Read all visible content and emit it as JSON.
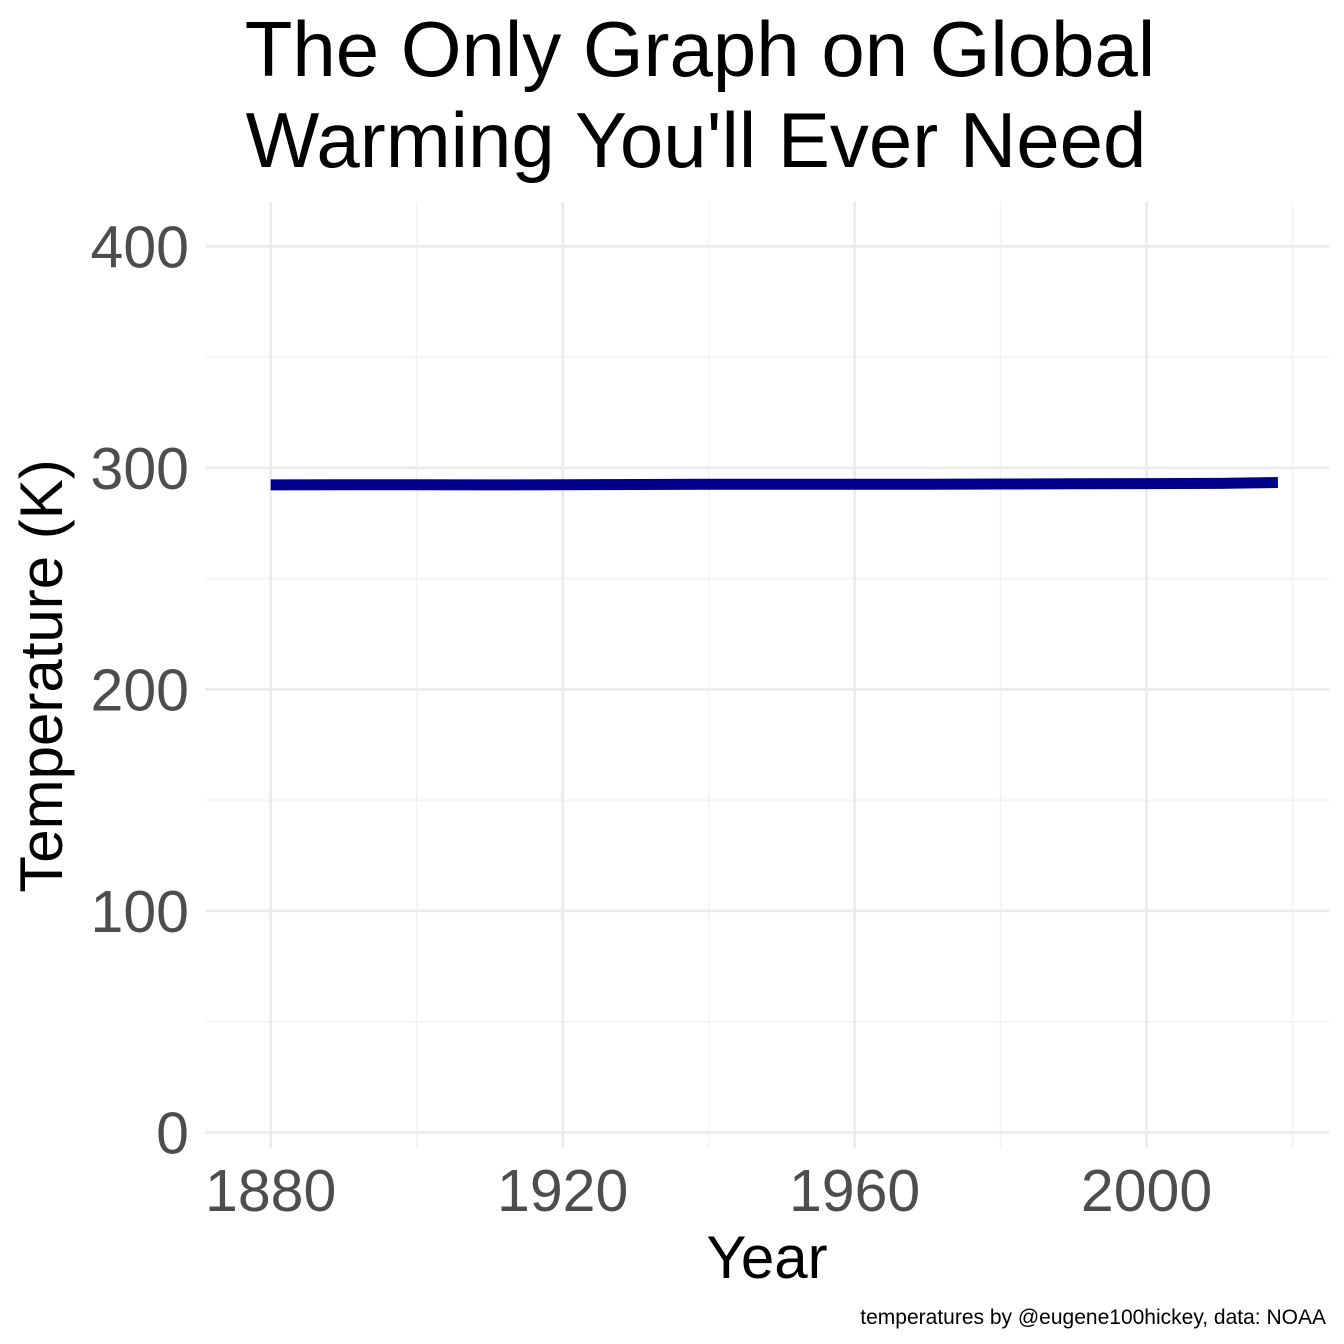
{
  "chart_data": {
    "type": "line",
    "title_lines": [
      "The Only Graph on Global",
      "Warming You'll Ever Need"
    ],
    "xlabel": "Year",
    "ylabel": "Temperature (K)",
    "caption": "temperatures by @eugene100hickey, data: NOAA",
    "xlim": [
      1871,
      2025
    ],
    "ylim": [
      -7,
      420
    ],
    "x_ticks": [
      1880,
      1920,
      1960,
      2000
    ],
    "x_tick_labels": [
      "1880",
      "1920",
      "1960",
      "2000"
    ],
    "x_minor_ticks": [
      1900,
      1940,
      1980,
      2020
    ],
    "y_ticks": [
      0,
      100,
      200,
      300,
      400
    ],
    "y_tick_labels": [
      "0",
      "100",
      "200",
      "300",
      "400"
    ],
    "y_minor_ticks": [
      50,
      150,
      250,
      350
    ],
    "grid": true,
    "legend": "none",
    "series_color": "#00008b",
    "series": [
      {
        "x": [
          1880,
          1890,
          1900,
          1910,
          1920,
          1930,
          1940,
          1950,
          1960,
          1970,
          1980,
          1990,
          2000,
          2010,
          2018
        ],
        "values": [
          292.3,
          292.4,
          292.4,
          292.3,
          292.4,
          292.5,
          292.6,
          292.6,
          292.6,
          292.6,
          292.7,
          292.8,
          292.9,
          293.0,
          293.4
        ]
      }
    ]
  }
}
